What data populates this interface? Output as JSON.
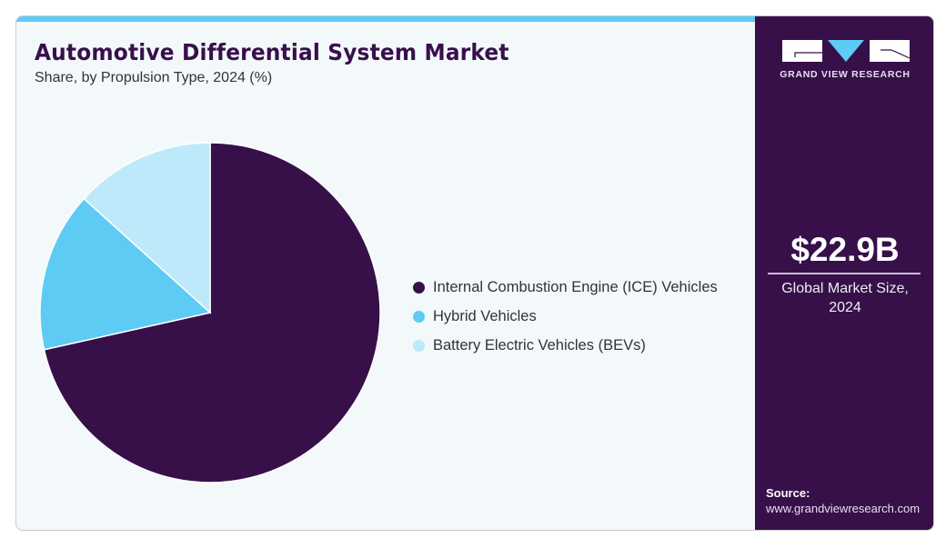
{
  "header": {
    "title": "Automotive Differential System Market",
    "subtitle": "Share, by Propulsion Type, 2024 (%)"
  },
  "chart_data": {
    "type": "pie",
    "title": "Automotive Differential System Market",
    "subtitle": "Share, by Propulsion Type, 2024 (%)",
    "start_angle": "12 o'clock",
    "direction": "clockwise",
    "slices": [
      {
        "label": "Internal Combustion Engine (ICE) Vehicles",
        "value": 71.5,
        "color": "#37104a"
      },
      {
        "label": "Hybrid Vehicles",
        "value": 15.2,
        "color": "#5ecbf5"
      },
      {
        "label": "Battery Electric Vehicles (BEVs)",
        "value": 13.3,
        "color": "#bde9fa"
      }
    ],
    "legend_position": "right"
  },
  "sidebar": {
    "brand": "GRAND VIEW RESEARCH",
    "market_size": "$22.9B",
    "market_label_line1": "Global Market Size,",
    "market_label_line2": "2024",
    "source_label": "Source:",
    "source_url": "www.grandviewresearch.com"
  },
  "colors": {
    "accent": "#5ecbf5",
    "brand_dark": "#37104a",
    "background": "#f3f8fb"
  }
}
